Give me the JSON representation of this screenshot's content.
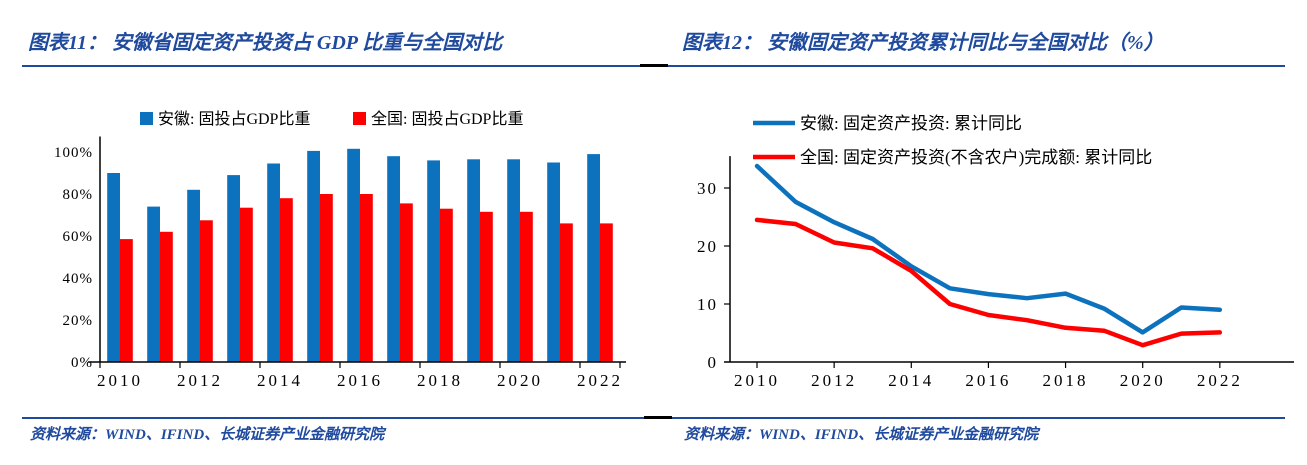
{
  "page": {
    "background": "#FFFFFF",
    "accent_blue": "#1F4A9E",
    "series_blue": "#0D72BD",
    "series_red": "#FE0000"
  },
  "panels": [
    {
      "title": "图表11： 安徽省固定资产投资占 GDP 比重与全国对比",
      "source": "资料来源：WIND、IFIND、长城证券产业金融研究院"
    },
    {
      "title": "图表12： 安徽固定资产投资累计同比与全国对比（%）",
      "source": "资料来源：WIND、IFIND、长城证券产业金融研究院"
    }
  ],
  "chart_data": [
    {
      "type": "bar",
      "title": "安徽省固定资产投资占GDP比重与全国对比",
      "categories": [
        "2010",
        "2011",
        "2012",
        "2013",
        "2014",
        "2015",
        "2016",
        "2017",
        "2018",
        "2019",
        "2020",
        "2021",
        "2022"
      ],
      "series": [
        {
          "name": "安徽: 固投占GDP比重",
          "color": "#0D72BD",
          "values": [
            90,
            74,
            82,
            89,
            94.5,
            100.5,
            101.5,
            98,
            96,
            96.5,
            96.5,
            95,
            99
          ]
        },
        {
          "name": "全国: 固投占GDP比重",
          "color": "#FE0000",
          "values": [
            58.5,
            62,
            67.5,
            73.5,
            78,
            80,
            80,
            75.5,
            73,
            71.5,
            71.5,
            66,
            66
          ]
        }
      ],
      "xlabel": "",
      "ylabel": "",
      "ylim": [
        0,
        105
      ],
      "y_ticks": [
        0,
        20,
        40,
        60,
        80,
        100
      ],
      "y_tick_suffix": "%",
      "x_tick_labels": [
        "2010",
        "2012",
        "2014",
        "2016",
        "2018",
        "2020",
        "2022"
      ],
      "legend_position": "top-center",
      "grid": false
    },
    {
      "type": "line",
      "title": "安徽固定资产投资累计同比与全国对比（%）",
      "categories": [
        "2010",
        "2011",
        "2012",
        "2013",
        "2014",
        "2015",
        "2016",
        "2017",
        "2018",
        "2019",
        "2020",
        "2021",
        "2022"
      ],
      "series": [
        {
          "name": "安徽: 固定资产投资: 累计同比",
          "color": "#0D72BD",
          "values": [
            33.8,
            27.6,
            24.1,
            21.2,
            16.5,
            12.7,
            11.7,
            11.0,
            11.8,
            9.2,
            5.1,
            9.4,
            9.0
          ]
        },
        {
          "name": "全国: 固定资产投资(不含农户)完成额: 累计同比",
          "color": "#FE0000",
          "values": [
            24.5,
            23.8,
            20.6,
            19.6,
            15.7,
            10.0,
            8.1,
            7.2,
            5.9,
            5.4,
            2.9,
            4.9,
            5.1
          ]
        }
      ],
      "xlabel": "",
      "ylabel": "",
      "ylim": [
        0,
        35.5
      ],
      "y_ticks": [
        0,
        10,
        20,
        30
      ],
      "y_tick_suffix": "",
      "x_tick_labels": [
        "2010",
        "2012",
        "2014",
        "2016",
        "2018",
        "2020",
        "2022"
      ],
      "legend_position": "top-left",
      "grid": false
    }
  ]
}
